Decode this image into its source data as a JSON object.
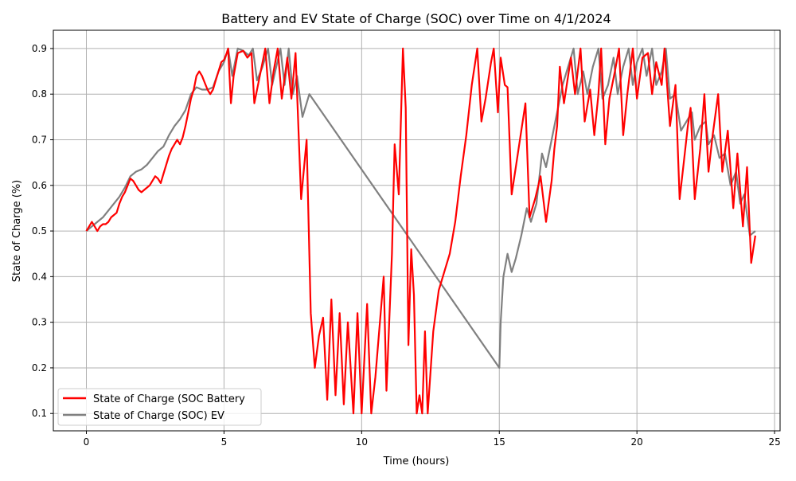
{
  "chart_data": {
    "type": "line",
    "title": "Battery and EV State of Charge (SOC) over Time on 4/1/2024",
    "xlabel": "Time (hours)",
    "ylabel": "State of Charge (%)",
    "xlim": [
      -1.2,
      25.2
    ],
    "ylim": [
      0.062,
      0.94
    ],
    "xticks": [
      0,
      5,
      10,
      15,
      20,
      25
    ],
    "yticks": [
      0.1,
      0.2,
      0.3,
      0.4,
      0.5,
      0.6,
      0.7,
      0.8,
      0.9
    ],
    "grid": true,
    "legend": {
      "position": "bottom-left"
    },
    "series": [
      {
        "name": "State of Charge (SOC Battery",
        "color": "#ff0000",
        "points": [
          [
            0,
            0.5
          ],
          [
            0.1,
            0.51
          ],
          [
            0.2,
            0.52
          ],
          [
            0.3,
            0.51
          ],
          [
            0.4,
            0.5
          ],
          [
            0.5,
            0.51
          ],
          [
            0.6,
            0.515
          ],
          [
            0.7,
            0.515
          ],
          [
            0.8,
            0.52
          ],
          [
            0.9,
            0.53
          ],
          [
            1.0,
            0.535
          ],
          [
            1.1,
            0.54
          ],
          [
            1.2,
            0.56
          ],
          [
            1.3,
            0.575
          ],
          [
            1.4,
            0.585
          ],
          [
            1.5,
            0.6
          ],
          [
            1.6,
            0.615
          ],
          [
            1.7,
            0.61
          ],
          [
            1.8,
            0.6
          ],
          [
            1.9,
            0.59
          ],
          [
            2.0,
            0.585
          ],
          [
            2.1,
            0.59
          ],
          [
            2.2,
            0.595
          ],
          [
            2.3,
            0.6
          ],
          [
            2.4,
            0.61
          ],
          [
            2.5,
            0.62
          ],
          [
            2.6,
            0.615
          ],
          [
            2.7,
            0.605
          ],
          [
            2.8,
            0.625
          ],
          [
            2.9,
            0.645
          ],
          [
            3.0,
            0.665
          ],
          [
            3.1,
            0.68
          ],
          [
            3.2,
            0.69
          ],
          [
            3.3,
            0.7
          ],
          [
            3.4,
            0.69
          ],
          [
            3.5,
            0.705
          ],
          [
            3.6,
            0.73
          ],
          [
            3.7,
            0.76
          ],
          [
            3.8,
            0.79
          ],
          [
            3.9,
            0.81
          ],
          [
            4.0,
            0.84
          ],
          [
            4.1,
            0.85
          ],
          [
            4.2,
            0.84
          ],
          [
            4.3,
            0.825
          ],
          [
            4.4,
            0.81
          ],
          [
            4.5,
            0.8
          ],
          [
            4.6,
            0.81
          ],
          [
            4.7,
            0.83
          ],
          [
            4.8,
            0.85
          ],
          [
            4.9,
            0.87
          ],
          [
            5.0,
            0.875
          ],
          [
            5.1,
            0.89
          ],
          [
            5.15,
            0.9
          ],
          [
            5.25,
            0.78
          ],
          [
            5.35,
            0.84
          ],
          [
            5.5,
            0.89
          ],
          [
            5.7,
            0.895
          ],
          [
            5.85,
            0.88
          ],
          [
            6.0,
            0.89
          ],
          [
            6.1,
            0.78
          ],
          [
            6.3,
            0.84
          ],
          [
            6.5,
            0.9
          ],
          [
            6.65,
            0.78
          ],
          [
            6.8,
            0.85
          ],
          [
            6.95,
            0.9
          ],
          [
            7.1,
            0.79
          ],
          [
            7.3,
            0.88
          ],
          [
            7.45,
            0.79
          ],
          [
            7.6,
            0.89
          ],
          [
            7.8,
            0.57
          ],
          [
            8.0,
            0.7
          ],
          [
            8.15,
            0.32
          ],
          [
            8.3,
            0.2
          ],
          [
            8.45,
            0.27
          ],
          [
            8.6,
            0.31
          ],
          [
            8.75,
            0.13
          ],
          [
            8.9,
            0.35
          ],
          [
            9.05,
            0.14
          ],
          [
            9.2,
            0.32
          ],
          [
            9.35,
            0.12
          ],
          [
            9.5,
            0.3
          ],
          [
            9.7,
            0.1
          ],
          [
            9.85,
            0.32
          ],
          [
            10.0,
            0.1
          ],
          [
            10.2,
            0.34
          ],
          [
            10.35,
            0.1
          ],
          [
            10.5,
            0.18
          ],
          [
            10.8,
            0.4
          ],
          [
            10.9,
            0.15
          ],
          [
            11.1,
            0.45
          ],
          [
            11.2,
            0.69
          ],
          [
            11.35,
            0.58
          ],
          [
            11.5,
            0.9
          ],
          [
            11.6,
            0.77
          ],
          [
            11.7,
            0.25
          ],
          [
            11.8,
            0.46
          ],
          [
            11.9,
            0.36
          ],
          [
            12.0,
            0.1
          ],
          [
            12.1,
            0.14
          ],
          [
            12.2,
            0.1
          ],
          [
            12.3,
            0.28
          ],
          [
            12.4,
            0.1
          ],
          [
            12.6,
            0.28
          ],
          [
            12.8,
            0.37
          ],
          [
            13.0,
            0.41
          ],
          [
            13.2,
            0.45
          ],
          [
            13.4,
            0.52
          ],
          [
            13.6,
            0.62
          ],
          [
            13.8,
            0.71
          ],
          [
            14.0,
            0.82
          ],
          [
            14.2,
            0.9
          ],
          [
            14.35,
            0.74
          ],
          [
            14.5,
            0.79
          ],
          [
            14.7,
            0.87
          ],
          [
            14.8,
            0.9
          ],
          [
            14.95,
            0.76
          ],
          [
            15.05,
            0.88
          ],
          [
            15.2,
            0.82
          ],
          [
            15.3,
            0.815
          ],
          [
            15.45,
            0.58
          ],
          [
            15.6,
            0.64
          ],
          [
            15.8,
            0.72
          ],
          [
            15.95,
            0.78
          ],
          [
            16.1,
            0.53
          ],
          [
            16.3,
            0.57
          ],
          [
            16.5,
            0.62
          ],
          [
            16.7,
            0.52
          ],
          [
            16.9,
            0.61
          ],
          [
            17.0,
            0.68
          ],
          [
            17.1,
            0.73
          ],
          [
            17.2,
            0.86
          ],
          [
            17.35,
            0.78
          ],
          [
            17.6,
            0.88
          ],
          [
            17.75,
            0.8
          ],
          [
            17.85,
            0.85
          ],
          [
            17.95,
            0.9
          ],
          [
            18.1,
            0.74
          ],
          [
            18.3,
            0.81
          ],
          [
            18.45,
            0.71
          ],
          [
            18.6,
            0.8
          ],
          [
            18.7,
            0.9
          ],
          [
            18.85,
            0.69
          ],
          [
            19.0,
            0.79
          ],
          [
            19.2,
            0.85
          ],
          [
            19.35,
            0.9
          ],
          [
            19.5,
            0.71
          ],
          [
            19.65,
            0.8
          ],
          [
            19.85,
            0.9
          ],
          [
            20.0,
            0.79
          ],
          [
            20.2,
            0.88
          ],
          [
            20.4,
            0.89
          ],
          [
            20.55,
            0.8
          ],
          [
            20.7,
            0.87
          ],
          [
            20.9,
            0.82
          ],
          [
            21.0,
            0.9
          ],
          [
            21.2,
            0.73
          ],
          [
            21.4,
            0.82
          ],
          [
            21.55,
            0.57
          ],
          [
            21.7,
            0.65
          ],
          [
            21.85,
            0.73
          ],
          [
            21.95,
            0.77
          ],
          [
            22.1,
            0.57
          ],
          [
            22.3,
            0.68
          ],
          [
            22.45,
            0.8
          ],
          [
            22.6,
            0.63
          ],
          [
            22.75,
            0.71
          ],
          [
            22.95,
            0.8
          ],
          [
            23.1,
            0.63
          ],
          [
            23.3,
            0.72
          ],
          [
            23.5,
            0.55
          ],
          [
            23.65,
            0.67
          ],
          [
            23.85,
            0.51
          ],
          [
            24.0,
            0.64
          ],
          [
            24.15,
            0.43
          ],
          [
            24.3,
            0.49
          ]
        ]
      },
      {
        "name": "State of Charge (SOC) EV",
        "color": "#808080",
        "points": [
          [
            0,
            0.5
          ],
          [
            0.2,
            0.51
          ],
          [
            0.4,
            0.52
          ],
          [
            0.6,
            0.53
          ],
          [
            0.8,
            0.545
          ],
          [
            1.0,
            0.56
          ],
          [
            1.2,
            0.575
          ],
          [
            1.4,
            0.595
          ],
          [
            1.6,
            0.62
          ],
          [
            1.8,
            0.63
          ],
          [
            2.0,
            0.635
          ],
          [
            2.2,
            0.645
          ],
          [
            2.4,
            0.66
          ],
          [
            2.6,
            0.675
          ],
          [
            2.8,
            0.685
          ],
          [
            3.0,
            0.71
          ],
          [
            3.2,
            0.73
          ],
          [
            3.4,
            0.745
          ],
          [
            3.6,
            0.765
          ],
          [
            3.8,
            0.8
          ],
          [
            4.0,
            0.815
          ],
          [
            4.2,
            0.81
          ],
          [
            4.4,
            0.81
          ],
          [
            4.6,
            0.815
          ],
          [
            4.8,
            0.85
          ],
          [
            5.0,
            0.87
          ],
          [
            5.15,
            0.9
          ],
          [
            5.3,
            0.84
          ],
          [
            5.5,
            0.9
          ],
          [
            5.7,
            0.895
          ],
          [
            5.9,
            0.885
          ],
          [
            6.05,
            0.9
          ],
          [
            6.2,
            0.83
          ],
          [
            6.4,
            0.86
          ],
          [
            6.6,
            0.9
          ],
          [
            6.75,
            0.82
          ],
          [
            6.9,
            0.86
          ],
          [
            7.05,
            0.9
          ],
          [
            7.2,
            0.82
          ],
          [
            7.35,
            0.9
          ],
          [
            7.5,
            0.8
          ],
          [
            7.65,
            0.84
          ],
          [
            7.85,
            0.75
          ],
          [
            8.1,
            0.8
          ],
          [
            15.0,
            0.2
          ],
          [
            15.05,
            0.3
          ],
          [
            15.15,
            0.4
          ],
          [
            15.3,
            0.45
          ],
          [
            15.45,
            0.41
          ],
          [
            15.6,
            0.44
          ],
          [
            15.8,
            0.49
          ],
          [
            16.0,
            0.55
          ],
          [
            16.15,
            0.52
          ],
          [
            16.35,
            0.56
          ],
          [
            16.55,
            0.67
          ],
          [
            16.7,
            0.64
          ],
          [
            16.9,
            0.7
          ],
          [
            17.1,
            0.76
          ],
          [
            17.3,
            0.82
          ],
          [
            17.5,
            0.86
          ],
          [
            17.7,
            0.9
          ],
          [
            17.85,
            0.8
          ],
          [
            18.05,
            0.85
          ],
          [
            18.2,
            0.8
          ],
          [
            18.4,
            0.86
          ],
          [
            18.6,
            0.9
          ],
          [
            18.75,
            0.79
          ],
          [
            18.95,
            0.82
          ],
          [
            19.15,
            0.88
          ],
          [
            19.3,
            0.8
          ],
          [
            19.5,
            0.86
          ],
          [
            19.7,
            0.9
          ],
          [
            19.85,
            0.82
          ],
          [
            20.0,
            0.87
          ],
          [
            20.2,
            0.9
          ],
          [
            20.35,
            0.84
          ],
          [
            20.55,
            0.9
          ],
          [
            20.7,
            0.82
          ],
          [
            20.9,
            0.85
          ],
          [
            21.05,
            0.9
          ],
          [
            21.2,
            0.79
          ],
          [
            21.4,
            0.8
          ],
          [
            21.6,
            0.72
          ],
          [
            21.8,
            0.74
          ],
          [
            22.0,
            0.76
          ],
          [
            22.1,
            0.7
          ],
          [
            22.3,
            0.73
          ],
          [
            22.5,
            0.74
          ],
          [
            22.6,
            0.69
          ],
          [
            22.8,
            0.71
          ],
          [
            23.0,
            0.66
          ],
          [
            23.2,
            0.67
          ],
          [
            23.4,
            0.6
          ],
          [
            23.6,
            0.63
          ],
          [
            23.75,
            0.56
          ],
          [
            23.9,
            0.58
          ],
          [
            24.1,
            0.49
          ],
          [
            24.3,
            0.5
          ]
        ]
      }
    ]
  }
}
